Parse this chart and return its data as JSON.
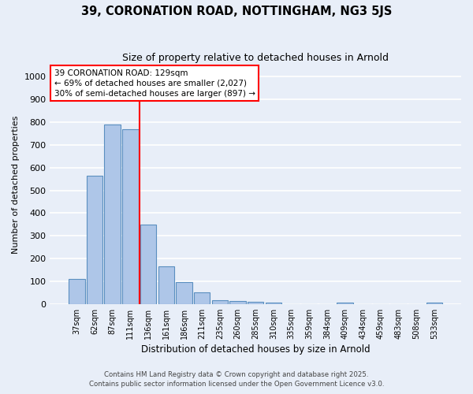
{
  "title": "39, CORONATION ROAD, NOTTINGHAM, NG3 5JS",
  "subtitle": "Size of property relative to detached houses in Arnold",
  "xlabel": "Distribution of detached houses by size in Arnold",
  "ylabel": "Number of detached properties",
  "categories": [
    "37sqm",
    "62sqm",
    "87sqm",
    "111sqm",
    "136sqm",
    "161sqm",
    "186sqm",
    "211sqm",
    "235sqm",
    "260sqm",
    "285sqm",
    "310sqm",
    "335sqm",
    "359sqm",
    "384sqm",
    "409sqm",
    "434sqm",
    "459sqm",
    "483sqm",
    "508sqm",
    "533sqm"
  ],
  "values": [
    110,
    565,
    790,
    770,
    350,
    165,
    95,
    52,
    18,
    12,
    10,
    8,
    0,
    0,
    0,
    7,
    0,
    0,
    0,
    0,
    8
  ],
  "bar_color": "#aec6e8",
  "bar_edge_color": "#5a8fc0",
  "vline_color": "red",
  "annotation_text": "39 CORONATION ROAD: 129sqm\n← 69% of detached houses are smaller (2,027)\n30% of semi-detached houses are larger (897) →",
  "annotation_box_color": "white",
  "annotation_box_edgecolor": "red",
  "ylim": [
    0,
    1050
  ],
  "yticks": [
    0,
    100,
    200,
    300,
    400,
    500,
    600,
    700,
    800,
    900,
    1000
  ],
  "background_color": "#e8eef8",
  "grid_color": "white",
  "footer1": "Contains HM Land Registry data © Crown copyright and database right 2025.",
  "footer2": "Contains public sector information licensed under the Open Government Licence v3.0."
}
